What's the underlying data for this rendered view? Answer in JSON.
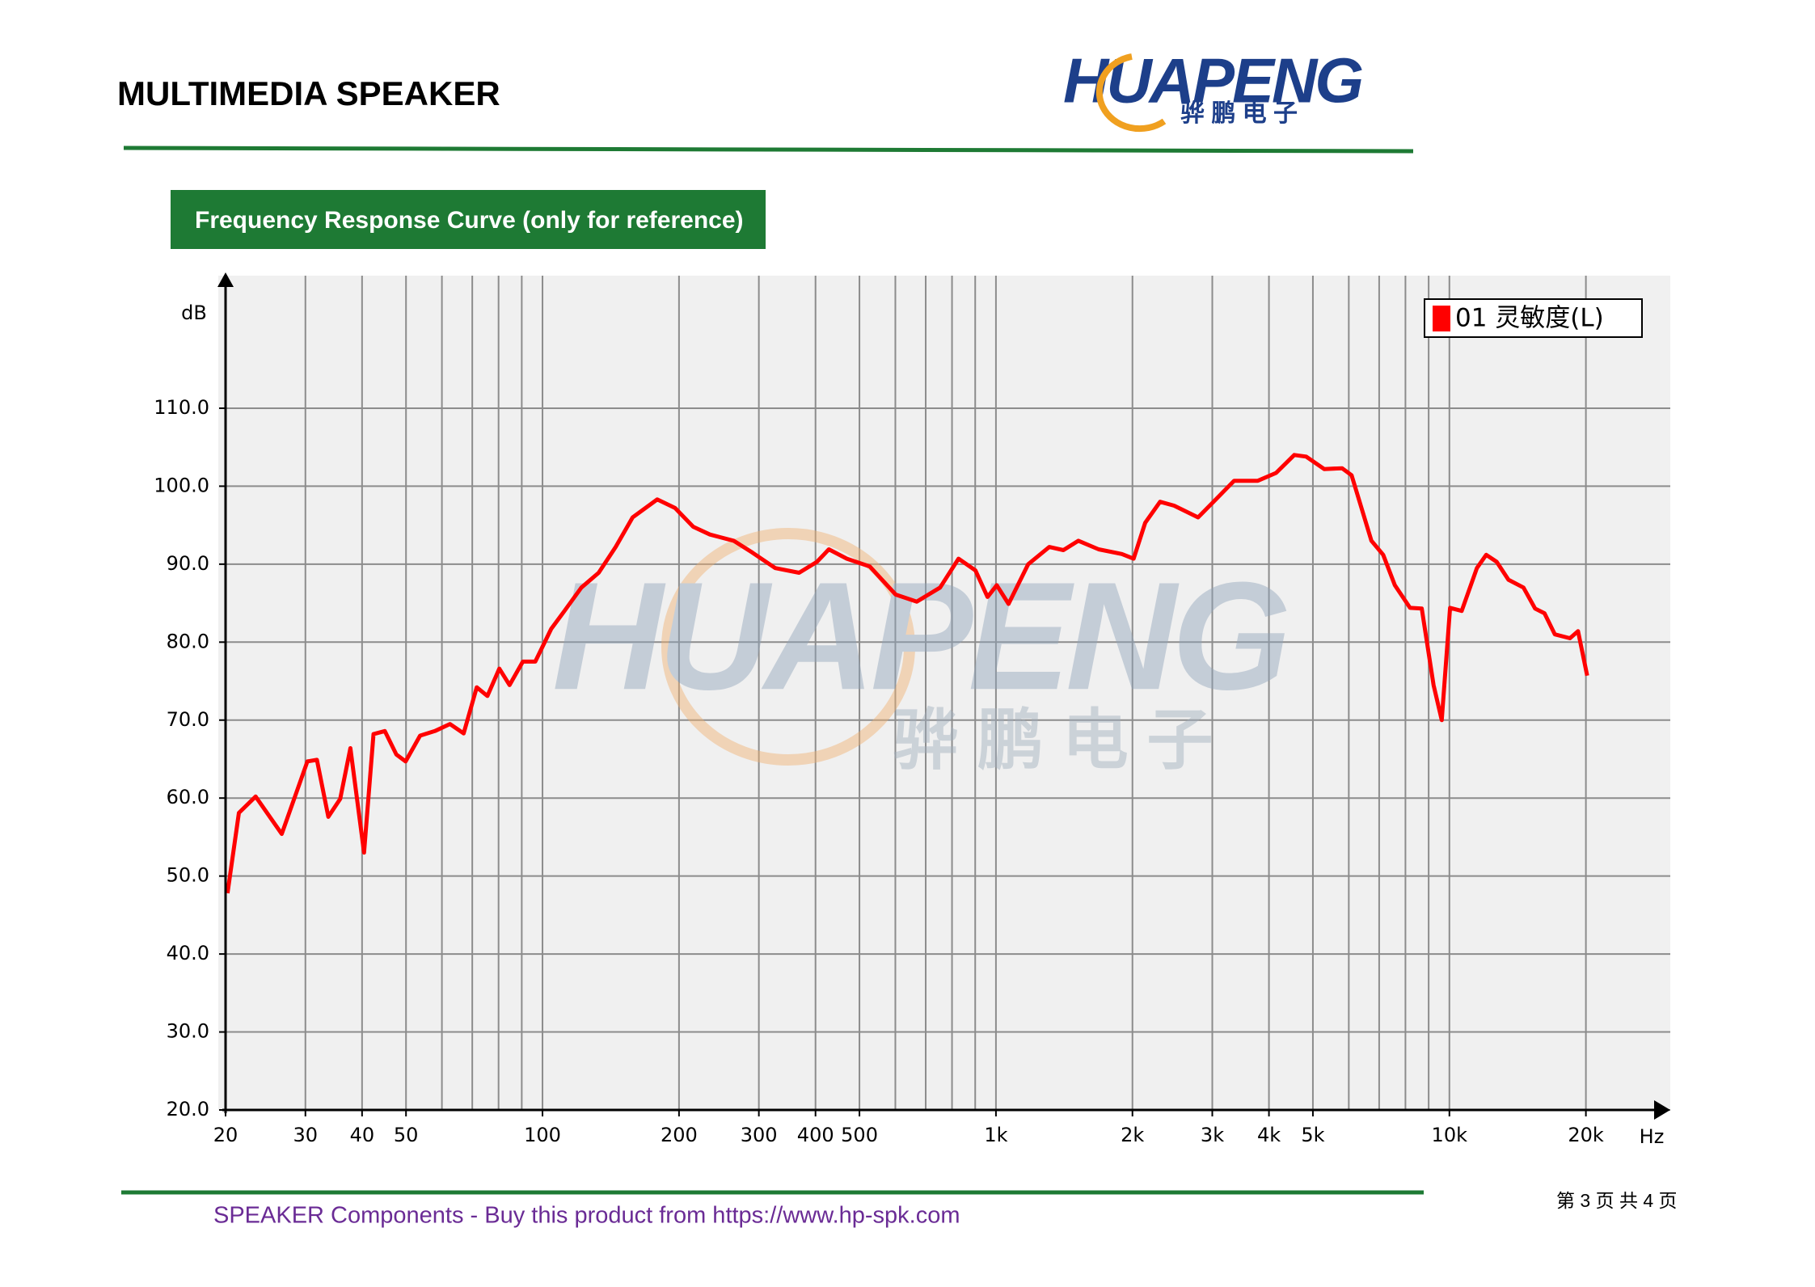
{
  "header": {
    "title": "MULTIMEDIA SPEAKER",
    "logo": "HUAPENG",
    "logo_sub": "骅 鹏 电 子"
  },
  "section_title": "Frequency Response Curve (only for reference)",
  "watermark": {
    "name": "HUAPENG",
    "sub": "骅 鹏 电 子"
  },
  "chart_data": {
    "type": "line",
    "x_log_scale": true,
    "grid": true,
    "legend": "upper right",
    "y_axis_label": "dB",
    "x_axis_label": "Hz",
    "xlim": [
      20,
      30700
    ],
    "ylim": [
      20,
      127
    ],
    "xticks": [
      20,
      30,
      40,
      50,
      100,
      200,
      300,
      400,
      500,
      {
        "value": 1000,
        "label": "1k"
      },
      {
        "value": 2000,
        "label": "2k"
      },
      {
        "value": 3000,
        "label": "3k"
      },
      {
        "value": 4000,
        "label": "4k"
      },
      {
        "value": 5000,
        "label": "5k"
      },
      {
        "value": 10000,
        "label": "10k"
      },
      {
        "value": 20000,
        "label": "20k"
      }
    ],
    "minor_xticks": [
      60,
      70,
      80,
      90,
      600,
      700,
      800,
      900,
      6000,
      7000,
      8000,
      9000
    ],
    "yticks": [
      {
        "value": 20,
        "label": "20.0"
      },
      {
        "value": 30,
        "label": "30.0"
      },
      {
        "value": 40,
        "label": "40.0"
      },
      {
        "value": 50,
        "label": "50.0"
      },
      {
        "value": 60,
        "label": "60.0"
      },
      {
        "value": 70,
        "label": "70.0"
      },
      {
        "value": 80,
        "label": "80.0"
      },
      {
        "value": 90,
        "label": "90.0"
      },
      {
        "value": 100,
        "label": "100.0"
      },
      {
        "value": 110,
        "label": "110.0"
      }
    ],
    "x": [
      20.2,
      21.4,
      23.3,
      26.6,
      30.3,
      31.8,
      33.7,
      35.8,
      37.7,
      40.4,
      42.4,
      44.9,
      47.6,
      49.9,
      53.7,
      57.9,
      62.5,
      67,
      71.6,
      75.6,
      80.3,
      84.6,
      90.5,
      96.4,
      104.5,
      111.8,
      121.8,
      133,
      145,
      158,
      179,
      196,
      215,
      234,
      264,
      290,
      326,
      368,
      403,
      428,
      469,
      527,
      601,
      669,
      753,
      827,
      901,
      958,
      1004,
      1066,
      1178,
      1311,
      1408,
      1520,
      1684,
      1895,
      2012,
      2134,
      2301,
      2471,
      2791,
      3055,
      3351,
      3780,
      4148,
      4549,
      4832,
      5296,
      5801,
      6085,
      6730,
      7144,
      7580,
      8189,
      8692,
      9226,
      9618,
      10032,
      10646,
      11499,
      12056,
      12715,
      13493,
      14564,
      15455,
      16207,
      17084,
      18443,
      19217,
      20134
    ],
    "series": [
      {
        "name": "01 灵敏度(L)",
        "color": "#ff0000",
        "values": [
          47.8,
          58.1,
          60.2,
          55.4,
          64.7,
          64.9,
          57.6,
          59.9,
          66.4,
          53.0,
          68.2,
          68.6,
          65.6,
          64.7,
          68.0,
          68.6,
          69.5,
          68.3,
          74.2,
          73.1,
          76.6,
          74.5,
          77.5,
          77.5,
          81.7,
          84.0,
          87.0,
          88.9,
          92.2,
          96.0,
          98.3,
          97.2,
          94.8,
          93.8,
          93.0,
          91.5,
          89.5,
          88.9,
          90.3,
          91.9,
          90.7,
          89.7,
          86.1,
          85.2,
          87.0,
          90.7,
          89.2,
          85.8,
          87.3,
          84.9,
          90.0,
          92.2,
          91.8,
          93.0,
          91.9,
          91.3,
          90.7,
          95.3,
          98.0,
          97.5,
          96.0,
          98.3,
          100.7,
          100.7,
          101.7,
          104.0,
          103.8,
          102.2,
          102.3,
          101.4,
          93.0,
          91.2,
          87.3,
          84.4,
          84.3,
          74.5,
          70.0,
          84.4,
          84.0,
          89.5,
          91.2,
          90.3,
          88.0,
          87.0,
          84.3,
          83.7,
          81.0,
          80.5,
          81.4,
          75.7
        ]
      }
    ]
  },
  "footer": {
    "text": "SPEAKER Components - Buy this product from  https://www.hp-spk.com",
    "page": "第 3 页 共 4 页"
  }
}
